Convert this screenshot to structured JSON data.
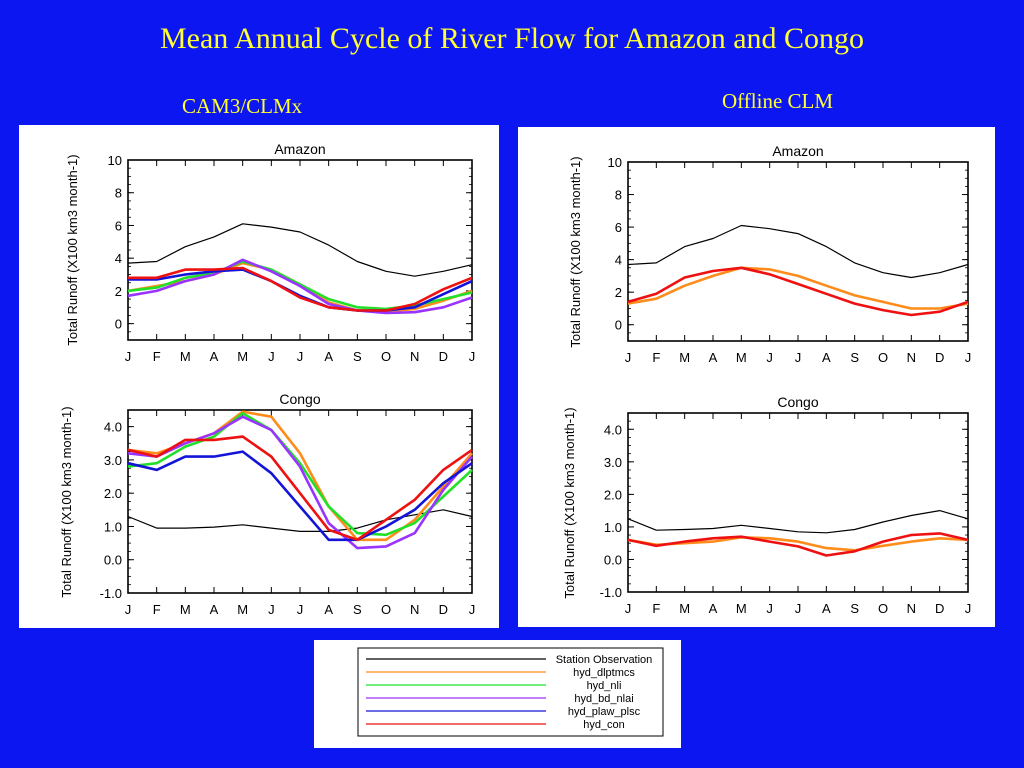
{
  "slide": {
    "title": "Mean Annual Cycle of River Flow for Amazon and Congo",
    "left_heading": "CAM3/CLMx",
    "right_heading": "Offline CLM"
  },
  "colors": {
    "background": "#0b16f0",
    "title_text": "#ffff33",
    "Station Observation": "#000000",
    "hyd_dlptmcs": "#ff8c1a",
    "hyd_nli": "#22e02a",
    "hyd_bd_nlai": "#9a33ff",
    "hyd_plaw_plsc": "#1414d8",
    "hyd_con": "#ee1111"
  },
  "legend": {
    "entries": [
      "Station Observation",
      "hyd_dlptmcs",
      "hyd_nli",
      "hyd_bd_nlai",
      "hyd_plaw_plsc",
      "hyd_con"
    ]
  },
  "chart_data": [
    {
      "id": "cam-amazon",
      "type": "line",
      "title": "Amazon",
      "ylabel": "Total Runoff (X100 km3 month-1)",
      "categories": [
        "J",
        "F",
        "M",
        "A",
        "M",
        "J",
        "J",
        "A",
        "S",
        "O",
        "N",
        "D",
        "J"
      ],
      "ylim": [
        -1,
        10
      ],
      "yticks": [
        0,
        2,
        4,
        6,
        8,
        10
      ],
      "ytick_labels": [
        "0",
        "2",
        "4",
        "6",
        "8",
        "10"
      ],
      "series": [
        {
          "name": "Station Observation",
          "values": [
            3.7,
            3.8,
            4.7,
            5.3,
            6.1,
            5.9,
            5.6,
            4.8,
            3.8,
            3.2,
            2.9,
            3.2,
            3.6
          ]
        },
        {
          "name": "hyd_dlptmcs",
          "values": [
            2.0,
            2.3,
            2.6,
            3.0,
            3.7,
            3.3,
            2.4,
            1.3,
            0.8,
            0.75,
            0.9,
            1.4,
            2.0
          ]
        },
        {
          "name": "hyd_nli",
          "values": [
            2.0,
            2.2,
            2.8,
            3.1,
            3.8,
            3.3,
            2.4,
            1.5,
            1.0,
            0.9,
            1.1,
            1.5,
            1.9
          ]
        },
        {
          "name": "hyd_bd_nlai",
          "values": [
            1.7,
            2.0,
            2.6,
            3.0,
            3.9,
            3.2,
            2.3,
            1.2,
            0.8,
            0.65,
            0.7,
            1.0,
            1.6
          ]
        },
        {
          "name": "hyd_plaw_plsc",
          "values": [
            2.7,
            2.7,
            3.0,
            3.2,
            3.3,
            2.6,
            1.7,
            1.0,
            0.8,
            0.8,
            1.0,
            1.8,
            2.6
          ]
        },
        {
          "name": "hyd_con",
          "values": [
            2.8,
            2.8,
            3.3,
            3.3,
            3.4,
            2.6,
            1.6,
            1.0,
            0.8,
            0.8,
            1.2,
            2.1,
            2.8
          ]
        }
      ]
    },
    {
      "id": "cam-congo",
      "type": "line",
      "title": "Congo",
      "ylabel": "Total Runoff (X100 km3 month-1)",
      "categories": [
        "J",
        "F",
        "M",
        "A",
        "M",
        "J",
        "J",
        "A",
        "S",
        "O",
        "N",
        "D",
        "J"
      ],
      "ylim": [
        -1,
        4.5
      ],
      "yticks": [
        -1,
        0,
        1,
        2,
        3,
        4
      ],
      "ytick_labels": [
        "-1.0",
        "0.0",
        "1.0",
        "2.0",
        "3.0",
        "4.0"
      ],
      "series": [
        {
          "name": "Station Observation",
          "values": [
            1.3,
            0.95,
            0.95,
            0.98,
            1.05,
            0.95,
            0.85,
            0.85,
            0.95,
            1.2,
            1.35,
            1.5,
            1.3
          ]
        },
        {
          "name": "hyd_dlptmcs",
          "values": [
            3.3,
            3.2,
            3.5,
            3.8,
            4.45,
            4.3,
            3.2,
            1.6,
            0.6,
            0.6,
            1.2,
            2.2,
            3.2
          ]
        },
        {
          "name": "hyd_nli",
          "values": [
            2.8,
            2.9,
            3.4,
            3.7,
            4.4,
            3.9,
            2.9,
            1.6,
            0.8,
            0.75,
            1.1,
            1.9,
            2.7
          ]
        },
        {
          "name": "hyd_bd_nlai",
          "values": [
            3.2,
            3.1,
            3.5,
            3.8,
            4.3,
            3.9,
            2.8,
            1.1,
            0.35,
            0.4,
            0.8,
            2.1,
            3.1
          ]
        },
        {
          "name": "hyd_plaw_plsc",
          "values": [
            2.9,
            2.7,
            3.1,
            3.1,
            3.25,
            2.6,
            1.6,
            0.6,
            0.6,
            1.0,
            1.5,
            2.3,
            2.9
          ]
        },
        {
          "name": "hyd_con",
          "values": [
            3.3,
            3.1,
            3.6,
            3.6,
            3.7,
            3.1,
            2.0,
            0.9,
            0.6,
            1.2,
            1.8,
            2.7,
            3.3
          ]
        }
      ]
    },
    {
      "id": "off-amazon",
      "type": "line",
      "title": "Amazon",
      "ylabel": "Total Runoff (X100 km3 month-1)",
      "categories": [
        "J",
        "F",
        "M",
        "A",
        "M",
        "J",
        "J",
        "A",
        "S",
        "O",
        "N",
        "D",
        "J"
      ],
      "ylim": [
        -1,
        10
      ],
      "yticks": [
        0,
        2,
        4,
        6,
        8,
        10
      ],
      "ytick_labels": [
        "0",
        "2",
        "4",
        "6",
        "8",
        "10"
      ],
      "series": [
        {
          "name": "Station Observation",
          "values": [
            3.7,
            3.8,
            4.8,
            5.3,
            6.1,
            5.9,
            5.6,
            4.8,
            3.8,
            3.2,
            2.9,
            3.2,
            3.7
          ]
        },
        {
          "name": "hyd_dlptmcs",
          "values": [
            1.3,
            1.6,
            2.4,
            3.0,
            3.5,
            3.4,
            3.0,
            2.4,
            1.8,
            1.4,
            1.0,
            1.0,
            1.3
          ]
        },
        {
          "name": "hyd_con",
          "values": [
            1.4,
            1.9,
            2.9,
            3.3,
            3.5,
            3.1,
            2.5,
            1.9,
            1.3,
            0.9,
            0.6,
            0.8,
            1.4
          ]
        }
      ]
    },
    {
      "id": "off-congo",
      "type": "line",
      "title": "Congo",
      "ylabel": "Total Runoff (X100 km3 month-1)",
      "categories": [
        "J",
        "F",
        "M",
        "A",
        "M",
        "J",
        "J",
        "A",
        "S",
        "O",
        "N",
        "D",
        "J"
      ],
      "ylim": [
        -1,
        4.5
      ],
      "yticks": [
        -1,
        0,
        1,
        2,
        3,
        4
      ],
      "ytick_labels": [
        "-1.0",
        "0.0",
        "1.0",
        "2.0",
        "3.0",
        "4.0"
      ],
      "series": [
        {
          "name": "Station Observation",
          "values": [
            1.25,
            0.9,
            0.92,
            0.95,
            1.05,
            0.95,
            0.85,
            0.82,
            0.92,
            1.15,
            1.35,
            1.5,
            1.25
          ]
        },
        {
          "name": "hyd_dlptmcs",
          "values": [
            0.6,
            0.45,
            0.5,
            0.55,
            0.68,
            0.65,
            0.55,
            0.35,
            0.28,
            0.42,
            0.55,
            0.65,
            0.6
          ]
        },
        {
          "name": "hyd_con",
          "values": [
            0.6,
            0.42,
            0.55,
            0.65,
            0.7,
            0.55,
            0.4,
            0.12,
            0.25,
            0.55,
            0.75,
            0.8,
            0.6
          ]
        }
      ]
    }
  ]
}
